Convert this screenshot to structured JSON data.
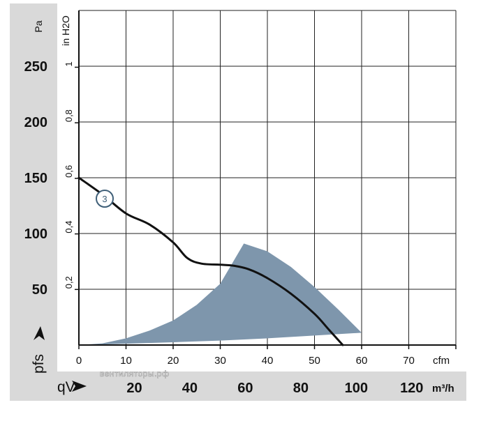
{
  "chart_data": {
    "type": "line",
    "x_axes": {
      "cfm": {
        "unit": "cfm",
        "ticks": [
          0,
          10,
          20,
          30,
          40,
          50,
          60,
          70
        ],
        "range": [
          0,
          80
        ]
      },
      "m3h": {
        "unit": "m³/h",
        "ticks": [
          20,
          40,
          60,
          80,
          100,
          120
        ]
      }
    },
    "y_axes": {
      "pa": {
        "unit": "Pa",
        "ticks": [
          50,
          100,
          150,
          200,
          250
        ],
        "range": [
          0,
          300
        ]
      },
      "inh2o": {
        "unit": "in H2O",
        "ticks": [
          "0,2",
          "0,4",
          "0,6",
          "0,8",
          "1"
        ]
      }
    },
    "ylabel_symbol": "pfs",
    "xlabel_symbol": "qV",
    "grid": true,
    "series": [
      {
        "marker_label": "3",
        "unit_x": "cfm",
        "unit_y": "Pa",
        "points": [
          [
            0,
            150
          ],
          [
            5,
            135
          ],
          [
            10,
            118
          ],
          [
            15,
            108
          ],
          [
            20,
            92
          ],
          [
            23,
            78
          ],
          [
            26,
            73
          ],
          [
            30,
            72
          ],
          [
            33,
            71
          ],
          [
            36,
            68
          ],
          [
            40,
            60
          ],
          [
            45,
            46
          ],
          [
            50,
            28
          ],
          [
            53,
            14
          ],
          [
            56,
            0
          ]
        ]
      }
    ],
    "shaded_region": {
      "color": "#7e96ac",
      "upper": [
        [
          0,
          0
        ],
        [
          5,
          1.5
        ],
        [
          10,
          6
        ],
        [
          15,
          13
        ],
        [
          20,
          22
        ],
        [
          25,
          36
        ],
        [
          30,
          55
        ],
        [
          35,
          91
        ],
        [
          40,
          84
        ],
        [
          45,
          70
        ],
        [
          50,
          52
        ],
        [
          55,
          32
        ],
        [
          60,
          11
        ]
      ],
      "lower": [
        [
          60,
          11
        ],
        [
          50,
          8.5
        ],
        [
          40,
          6
        ],
        [
          30,
          4
        ],
        [
          20,
          2.5
        ],
        [
          10,
          1.2
        ],
        [
          0,
          0
        ]
      ]
    },
    "marker_color": "#3f5f78",
    "curve_color": "#111111"
  },
  "watermark": "вентиляторы.рф"
}
